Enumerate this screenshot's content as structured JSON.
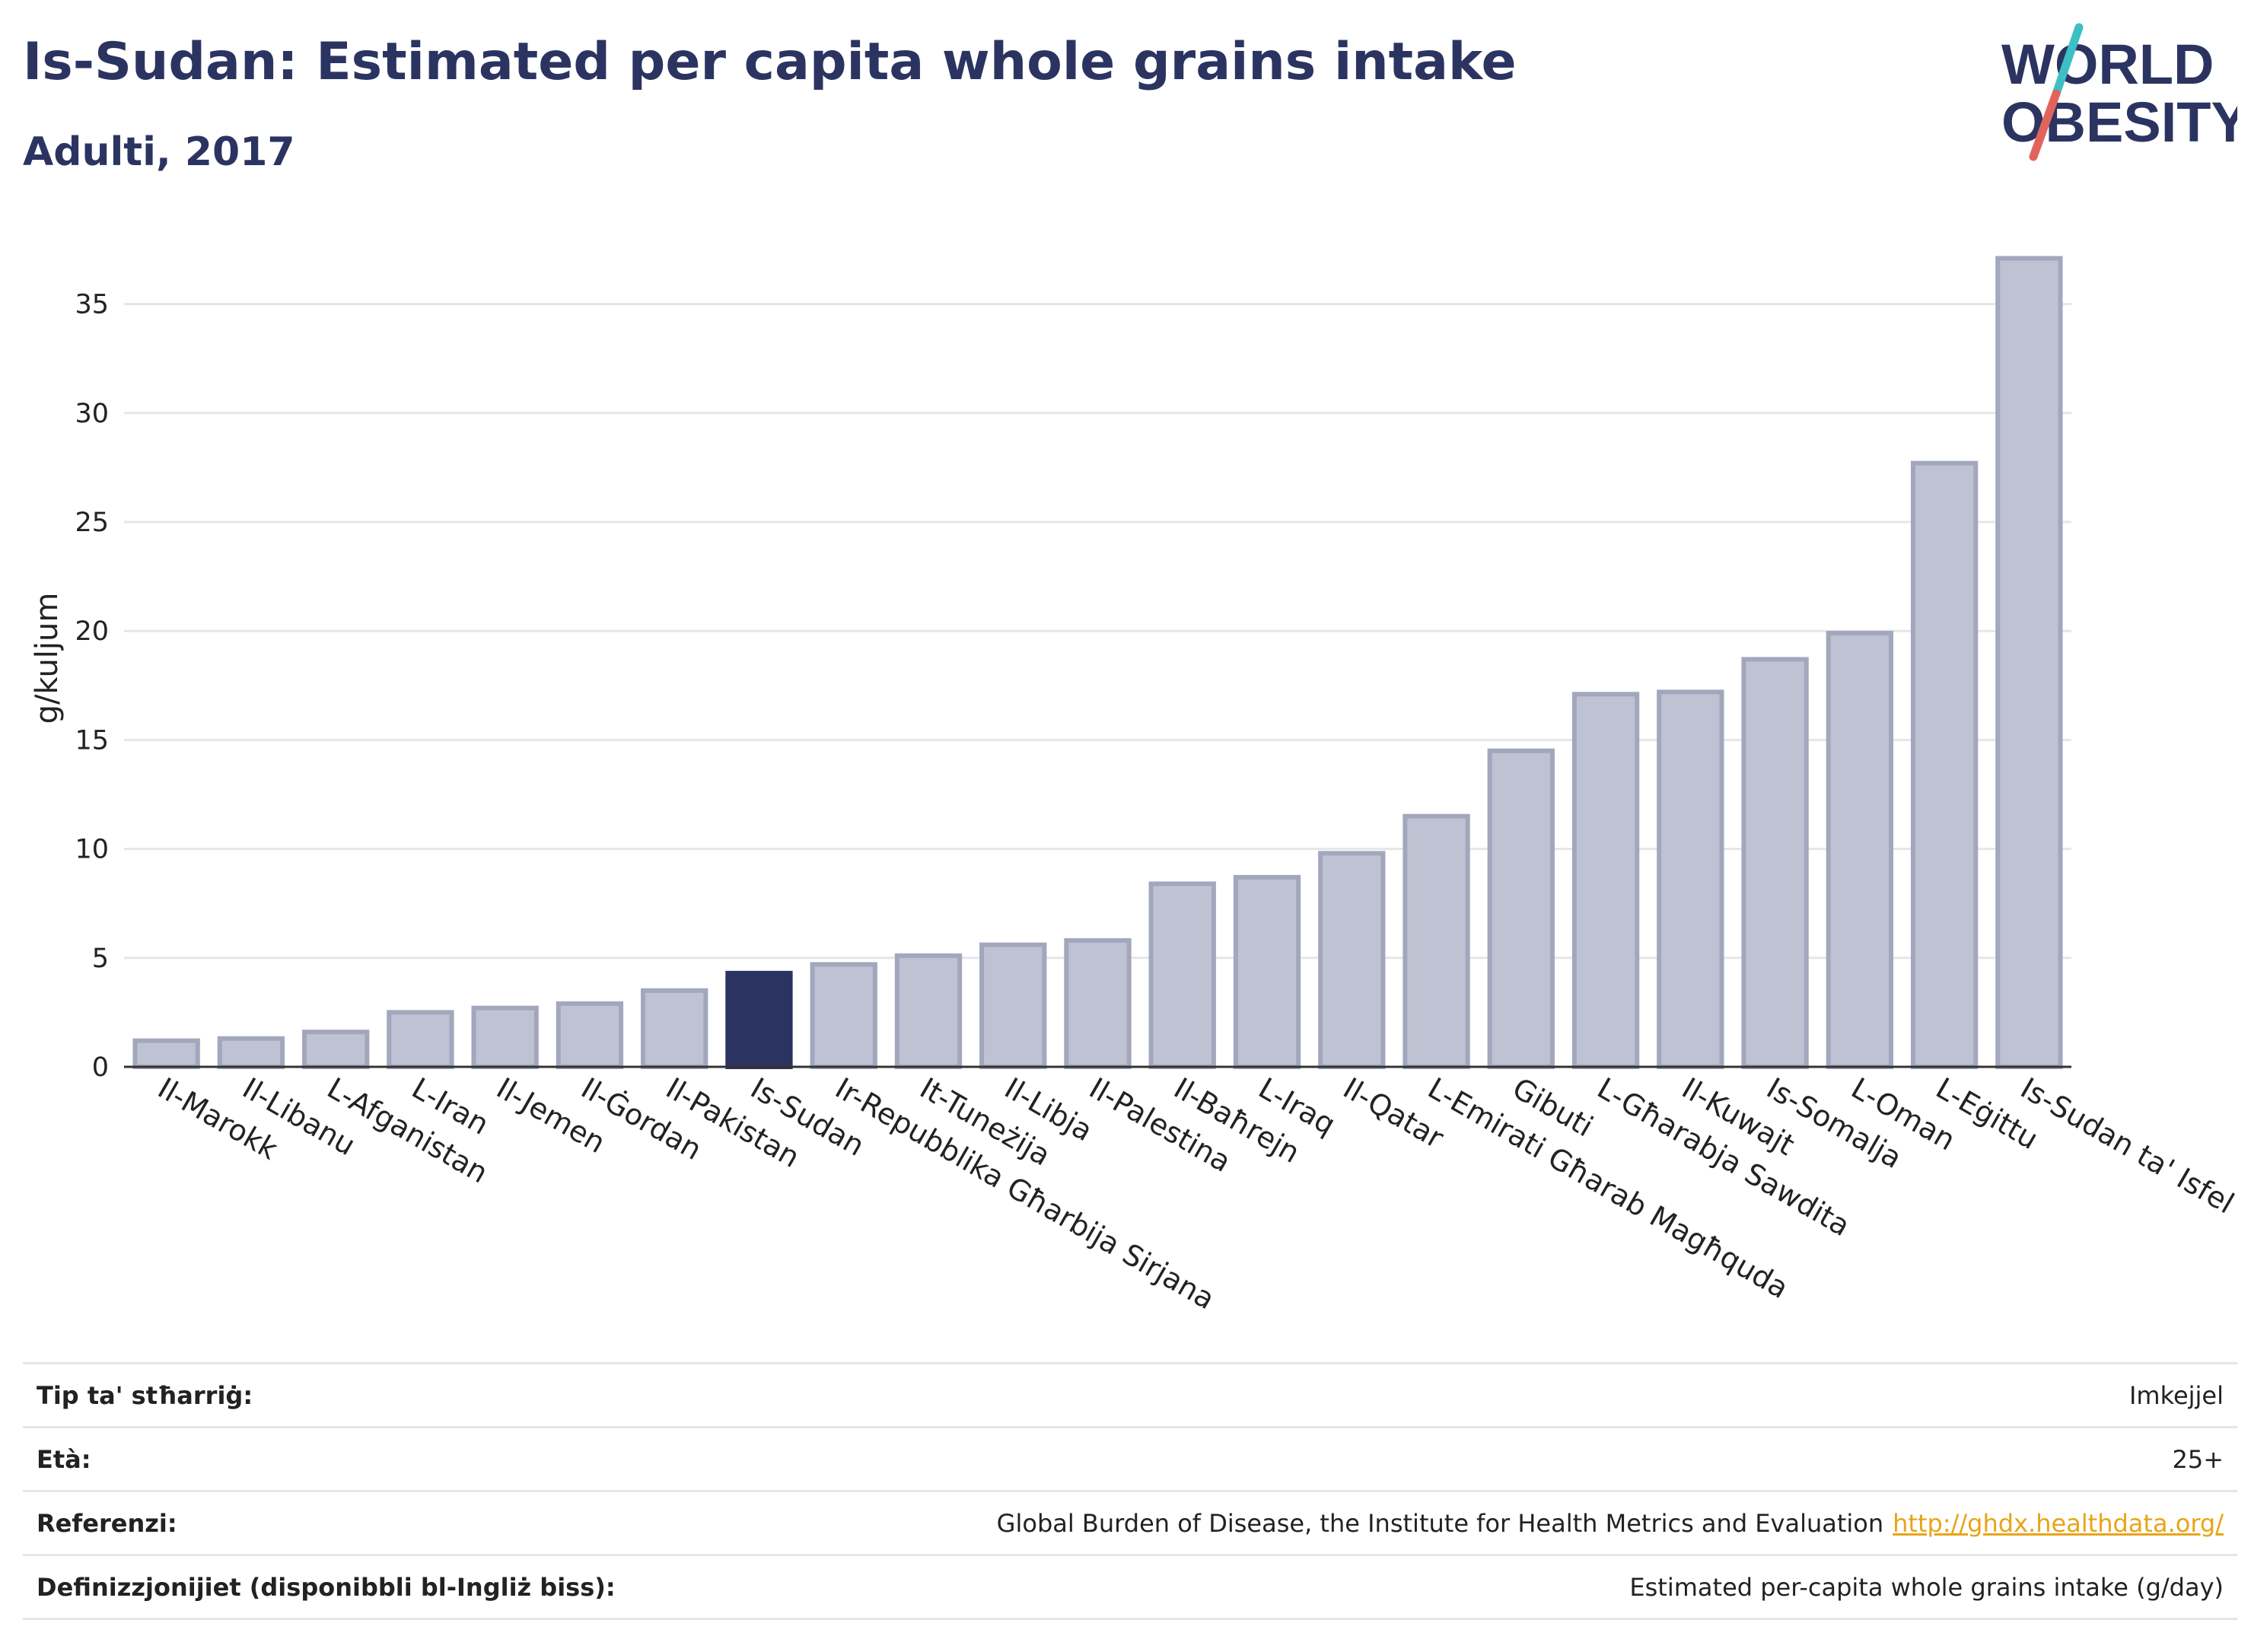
{
  "header": {
    "title": "Is-Sudan: Estimated per capita whole grains intake",
    "subtitle": "Adulti, 2017"
  },
  "logo": {
    "line1": "WORLD",
    "line2": "OBESITY",
    "text_color": "#2b3461",
    "slash_colors": [
      "#3cc0c5",
      "#e0645c"
    ]
  },
  "colors": {
    "bar_fill": "#bfc2d2",
    "bar_stroke": "#a2a7bd",
    "highlight_fill": "#2b3461",
    "grid": "#e6e6ea",
    "axis": "#333333"
  },
  "chart_data": {
    "type": "bar",
    "title": "Is-Sudan: Estimated per capita whole grains intake",
    "subtitle": "Adulti, 2017",
    "xlabel": "",
    "ylabel": "g/kuljum",
    "ylim": [
      0,
      37.5
    ],
    "yticks": [
      0,
      5,
      10,
      15,
      20,
      25,
      30,
      35
    ],
    "grid": true,
    "highlight": "Is-Sudan",
    "categories": [
      "Il-Marokk",
      "Il-Libanu",
      "L-Afganistan",
      "L-Iran",
      "Il-Jemen",
      "Il-Ġordan",
      "Il-Pakistan",
      "Is-Sudan",
      "Ir-Repubblika Għarbija Sirjana",
      "It-Tuneżija",
      "Il-Libja",
      "Il-Palestina",
      "Il-Baħrejn",
      "L-Iraq",
      "Il-Qatar",
      "L-Emirati Għarab Magħquda",
      "Gibuti",
      "L-Għarabja Sawdita",
      "Il-Kuwajt",
      "Is-Somalja",
      "L-Oman",
      "L-Eġittu",
      "Is-Sudan ta' Isfel"
    ],
    "values": [
      1.2,
      1.3,
      1.6,
      2.5,
      2.7,
      2.9,
      3.5,
      4.3,
      4.7,
      5.1,
      5.6,
      5.8,
      8.4,
      8.7,
      9.8,
      11.5,
      14.5,
      17.1,
      17.2,
      18.7,
      19.9,
      27.7,
      37.1
    ]
  },
  "info_table": [
    {
      "label": "Tip ta' stħarriġ:",
      "value": "Imkejjel"
    },
    {
      "label": "Età:",
      "value": "25+"
    },
    {
      "label": "Referenzi:",
      "value": "Global Burden of Disease, the Institute for Health Metrics and Evaluation",
      "link": "http://ghdx.healthdata.org/"
    },
    {
      "label": "Definizzjonijiet (disponibbli bl-Ingliż biss):",
      "value": "Estimated per-capita whole grains intake (g/day)"
    }
  ]
}
